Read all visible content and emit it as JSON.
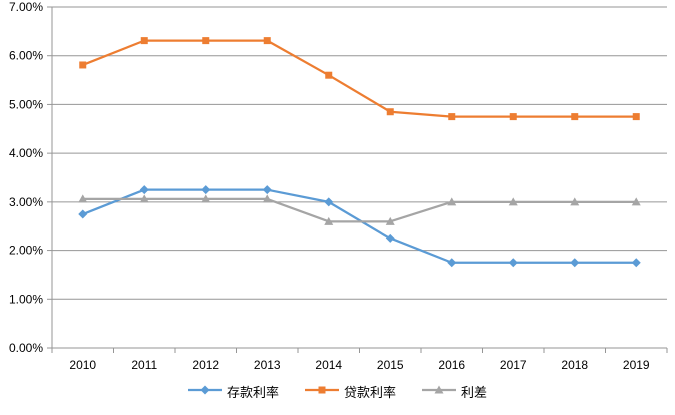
{
  "chart_data": {
    "type": "line",
    "title": "",
    "xlabel": "",
    "ylabel": "",
    "categories": [
      "2010",
      "2011",
      "2012",
      "2013",
      "2014",
      "2015",
      "2016",
      "2017",
      "2018",
      "2019"
    ],
    "series": [
      {
        "name": "存款利率",
        "marker": "diamond",
        "color": "#5B9BD5",
        "values": [
          2.75,
          3.25,
          3.25,
          3.25,
          3.0,
          2.25,
          1.75,
          1.75,
          1.75,
          1.75
        ]
      },
      {
        "name": "贷款利率",
        "marker": "square",
        "color": "#ED7D31",
        "values": [
          5.81,
          6.31,
          6.31,
          6.31,
          5.6,
          4.85,
          4.75,
          4.75,
          4.75,
          4.75
        ]
      },
      {
        "name": "利差",
        "marker": "triangle",
        "color": "#A5A5A5",
        "values": [
          3.06,
          3.06,
          3.06,
          3.06,
          2.6,
          2.6,
          3.0,
          3.0,
          3.0,
          3.0
        ]
      }
    ],
    "ylim": [
      0,
      7
    ],
    "ytick_step": 1,
    "ytick_labels": [
      "0.00%",
      "1.00%",
      "2.00%",
      "3.00%",
      "4.00%",
      "5.00%",
      "6.00%",
      "7.00%"
    ],
    "grid": "horizontal",
    "legend_position": "bottom",
    "colors": {
      "axis": "#969696",
      "gridline": "#969696",
      "tick_label": "#000000",
      "background": "#ffffff"
    }
  }
}
